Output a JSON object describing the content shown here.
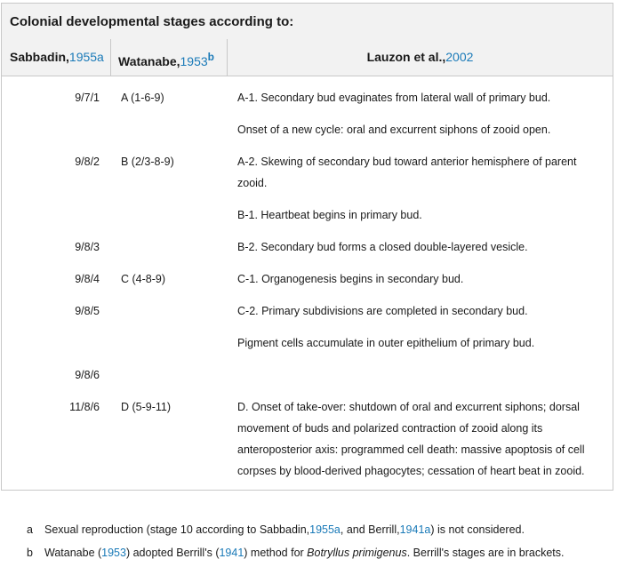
{
  "caption": "Colonial developmental stages according to:",
  "headers": {
    "sabbadin": "Sabbadin,",
    "sabbadin_ref": "1955a",
    "watanabe": "Watanabe,",
    "watanabe_ref": "1953",
    "watanabe_sup": "b",
    "lauzon": "Lauzon et al.,",
    "lauzon_ref": "2002"
  },
  "rows": [
    {
      "sab": "9/7/1",
      "wat": "A (1-6-9)",
      "lau": [
        "A-1. Secondary bud evaginates from lateral wall of primary bud."
      ]
    },
    {
      "sab": "",
      "wat": "",
      "lau": [
        "Onset of a new cycle: oral and excurrent siphons of zooid open."
      ]
    },
    {
      "sab": "9/8/2",
      "wat": "B (2/3-8-9)",
      "lau": [
        "A-2. Skewing of secondary bud toward anterior hemisphere of parent",
        "zooid."
      ]
    },
    {
      "sab": "",
      "wat": "",
      "lau": [
        "B-1. Heartbeat begins in primary bud."
      ]
    },
    {
      "sab": "9/8/3",
      "wat": "",
      "lau": [
        "B-2. Secondary bud forms a closed double-layered vesicle."
      ]
    },
    {
      "sab": "9/8/4",
      "wat": "C (4-8-9)",
      "lau": [
        "C-1. Organogenesis begins in secondary bud."
      ]
    },
    {
      "sab": "9/8/5",
      "wat": "",
      "lau": [
        "C-2. Primary subdivisions are completed in secondary bud."
      ]
    },
    {
      "sab": "",
      "wat": "",
      "lau": [
        "Pigment cells accumulate in outer epithelium of primary bud."
      ]
    },
    {
      "sab": "9/8/6",
      "wat": "",
      "lau": []
    },
    {
      "sab": "11/8/6",
      "wat": "D (5-9-11)",
      "lau": [
        "D. Onset of take-over: shutdown of oral and excurrent siphons; dorsal",
        "movement of buds and polarized contraction of zooid along its",
        "anteroposterior axis: programmed cell death: massive apoptosis of cell",
        "corpses by blood-derived phagocytes; cessation of heart beat in zooid."
      ]
    }
  ],
  "footnotes": {
    "a": {
      "label": "a",
      "text1": "Sexual reproduction (stage 10 according to Sabbadin,",
      "ref1": "1955a",
      "text2": ", and Berrill,",
      "ref2": "1941a",
      "text3": ") is not considered."
    },
    "b": {
      "label": "b",
      "text1": "Watanabe (",
      "ref1": "1953",
      "text2": ") adopted Berrill's (",
      "ref2": "1941",
      "text3": ") method for ",
      "italic": "Botryllus primigenus",
      "text4": ". Berrill's stages are in brackets."
    }
  }
}
